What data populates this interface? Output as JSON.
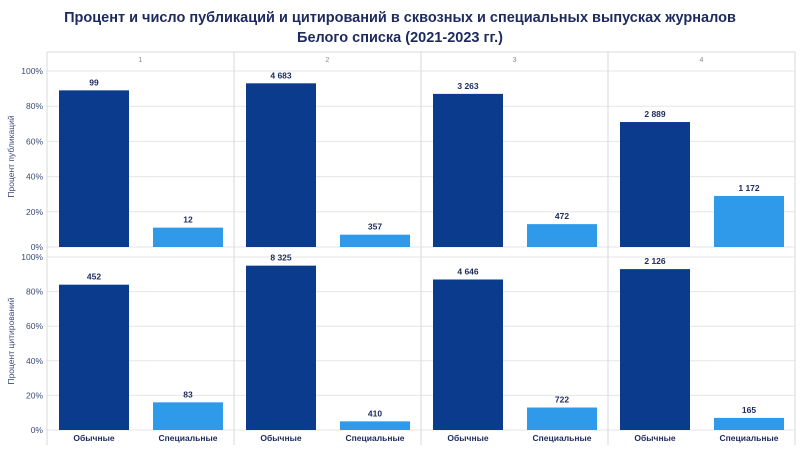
{
  "title_line1": "Процент и число публикаций и цитирований в сквозных и специальных выпусках журналов",
  "title_line2": "Белого списка (2021-2023 гг.)",
  "colors": {
    "regular": "#0b3b8c",
    "special": "#2f9aea",
    "grid": "#e6e6e6",
    "panel_border": "#d9d9d9",
    "text": "#1c2a5e",
    "axis_text": "#3a4a7a"
  },
  "chart_data": {
    "type": "bar",
    "facet_labels": [
      "1",
      "2",
      "3",
      "4"
    ],
    "categories": [
      "Обычные",
      "Специальные"
    ],
    "y_tick_labels": [
      "100%",
      "80%",
      "60%",
      "40%",
      "20%",
      "0%"
    ],
    "ylim": [
      0,
      100
    ],
    "grid": true,
    "rows": [
      {
        "ylabel": "Процент публикаций",
        "panels": [
          {
            "facet": "1",
            "values": [
              89,
              11
            ],
            "labels": [
              "99",
              "12"
            ]
          },
          {
            "facet": "2",
            "values": [
              93,
              7
            ],
            "labels": [
              "4 683",
              "357"
            ]
          },
          {
            "facet": "3",
            "values": [
              87,
              13
            ],
            "labels": [
              "3 263",
              "472"
            ]
          },
          {
            "facet": "4",
            "values": [
              71,
              29
            ],
            "labels": [
              "2 889",
              "1 172"
            ]
          }
        ]
      },
      {
        "ylabel": "Процент цитирований",
        "panels": [
          {
            "facet": "1",
            "values": [
              84,
              16
            ],
            "labels": [
              "452",
              "83"
            ]
          },
          {
            "facet": "2",
            "values": [
              95,
              5
            ],
            "labels": [
              "8 325",
              "410"
            ]
          },
          {
            "facet": "3",
            "values": [
              87,
              13
            ],
            "labels": [
              "4 646",
              "722"
            ]
          },
          {
            "facet": "4",
            "values": [
              93,
              7
            ],
            "labels": [
              "2 126",
              "165"
            ]
          }
        ]
      }
    ]
  }
}
